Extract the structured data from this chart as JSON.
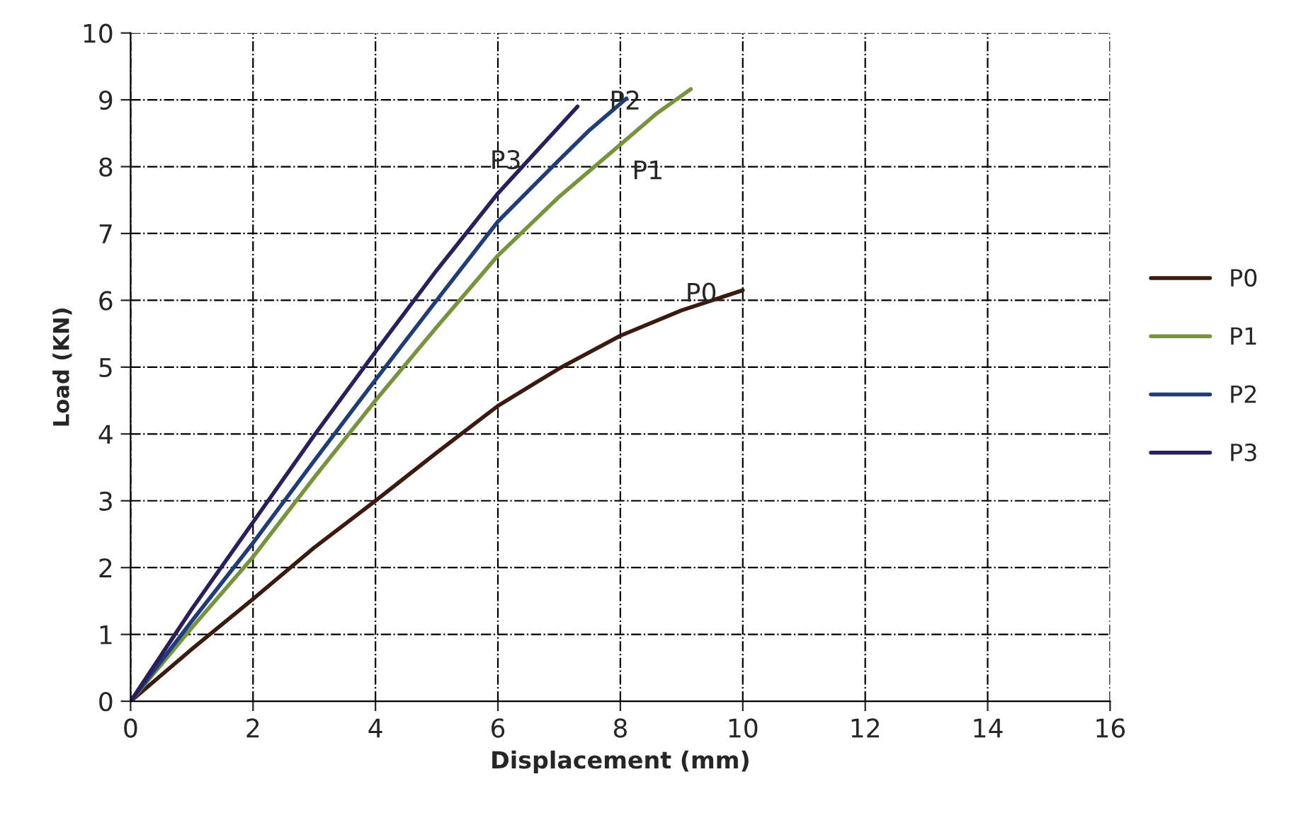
{
  "chart_data": {
    "type": "line",
    "xlabel": "Displacement (mm)",
    "ylabel": "Load (KN)",
    "xlim": [
      0,
      16
    ],
    "xticks": [
      0,
      2,
      4,
      6,
      8,
      10,
      12,
      14,
      16
    ],
    "ylim": [
      0,
      10
    ],
    "yticks": [
      0,
      1,
      2,
      3,
      4,
      5,
      6,
      7,
      8,
      9,
      10
    ],
    "grid": true,
    "legend": "right",
    "marker": "none",
    "line_style": "solid",
    "series": [
      {
        "name": "P0",
        "color": "#3b1a10",
        "x": [
          0,
          1,
          2,
          3,
          4,
          5,
          6,
          7,
          8,
          9,
          10
        ],
        "values": [
          0,
          0.78,
          1.53,
          2.3,
          3.0,
          3.72,
          4.42,
          4.98,
          5.47,
          5.85,
          6.15
        ]
      },
      {
        "name": "P1",
        "color": "#77933c",
        "x": [
          0,
          1,
          2,
          3,
          4,
          5,
          6,
          7,
          8,
          8.6,
          9.15
        ],
        "values": [
          0,
          1.1,
          2.16,
          3.35,
          4.5,
          5.6,
          6.67,
          7.55,
          8.33,
          8.8,
          9.16
        ]
      },
      {
        "name": "P2",
        "color": "#1f3d7a",
        "x": [
          0,
          1,
          2,
          3,
          4,
          5,
          6,
          7,
          7.5,
          8.1
        ],
        "values": [
          0,
          1.2,
          2.37,
          3.6,
          4.81,
          6.0,
          7.18,
          8.1,
          8.55,
          9.02
        ]
      },
      {
        "name": "P3",
        "color": "#2a1f5c",
        "x": [
          0,
          1,
          2,
          3,
          4,
          5,
          6,
          6.7,
          7.3
        ],
        "values": [
          0,
          1.38,
          2.68,
          3.98,
          5.23,
          6.45,
          7.6,
          8.3,
          8.9
        ]
      }
    ],
    "annotations": [
      {
        "text": "P0",
        "x": 9,
        "y": 5.85
      },
      {
        "text": "P1",
        "x": 8,
        "y": 8.33
      },
      {
        "text": "P2",
        "x": 7.5,
        "y": 8.55
      },
      {
        "text": "P3",
        "x": 6,
        "y": 7.6
      }
    ]
  }
}
